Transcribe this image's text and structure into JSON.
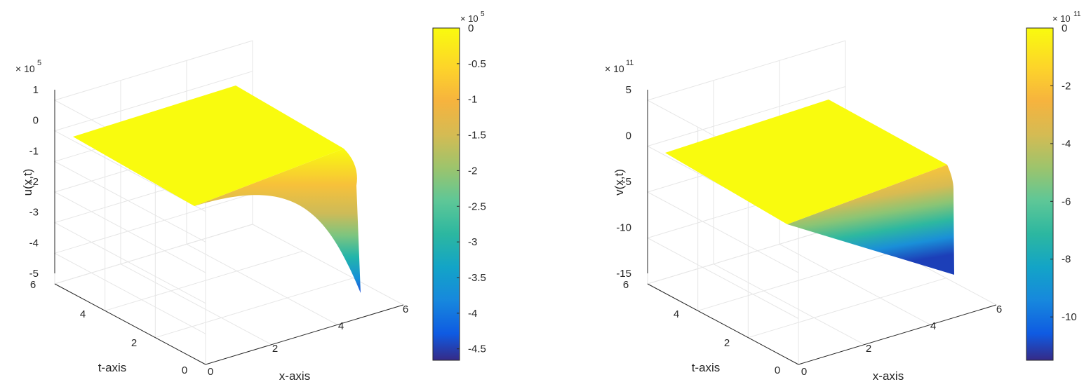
{
  "chart_data": [
    {
      "type": "surface",
      "xlabel": "x-axis",
      "ylabel": "t-axis",
      "zlabel": "u(x,t)",
      "x_ticks": [
        "0",
        "2",
        "4",
        "6"
      ],
      "t_ticks": [
        "0",
        "2",
        "4",
        "6"
      ],
      "z_ticks": [
        "1",
        "0",
        "-1",
        "-2",
        "-3",
        "-4",
        "-5"
      ],
      "z_exponent_base": "× 10",
      "z_exponent": "5",
      "xlim": [
        0,
        6
      ],
      "tlim": [
        0,
        6
      ],
      "zlim": [
        -500000,
        100000
      ],
      "surface_x_range": [
        0,
        5
      ],
      "surface_t_range": [
        0,
        5
      ],
      "surface_samples": {
        "description": "z along the far edge t = 5 where the surface drops",
        "x": [
          0,
          3.0,
          3.5,
          4.0,
          4.5,
          4.8,
          5.0
        ],
        "z_at_t5": [
          0,
          -1000,
          -10000,
          -40000,
          -120000,
          -280000,
          -466000
        ],
        "z_at_t0": [
          0,
          0,
          0,
          0,
          0,
          -500,
          -1200
        ]
      },
      "colorbar": {
        "ticks": [
          "0",
          "-0.5",
          "-1",
          "-1.5",
          "-2",
          "-2.5",
          "-3",
          "-3.5",
          "-4",
          "-4.5"
        ],
        "exponent_base": "× 10",
        "exponent": "5",
        "range": [
          -466000,
          0
        ],
        "colormap": "parula"
      },
      "grid": true
    },
    {
      "type": "surface",
      "xlabel": "x-axis",
      "ylabel": "t-axis",
      "zlabel": "v(x,t)",
      "x_ticks": [
        "0",
        "2",
        "4",
        "6"
      ],
      "t_ticks": [
        "0",
        "2",
        "4",
        "6"
      ],
      "z_ticks": [
        "5",
        "0",
        "-5",
        "-10",
        "-15"
      ],
      "z_exponent_base": "× 10",
      "z_exponent": "11",
      "xlim": [
        0,
        6
      ],
      "tlim": [
        0,
        6
      ],
      "zlim": [
        -1500000000000,
        500000000000
      ],
      "surface_x_range": [
        0,
        5
      ],
      "surface_t_range": [
        0,
        5
      ],
      "surface_samples": {
        "description": "z along the far x = 5 edge, linear in t",
        "t": [
          0,
          1,
          2,
          3,
          4,
          5
        ],
        "z_at_x5": [
          0,
          -230000000000,
          -460000000000,
          -690000000000,
          -920000000000,
          -1150000000000
        ]
      },
      "colorbar": {
        "ticks": [
          "0",
          "-2",
          "-4",
          "-6",
          "-8",
          "-10"
        ],
        "exponent_base": "× 10",
        "exponent": "11",
        "range": [
          -1150000000000,
          0
        ],
        "colormap": "parula"
      },
      "grid": true
    }
  ],
  "colors": {
    "parula_top": "#f9fb0e",
    "parula_mid": "#2cb7a0",
    "parula_bottom": "#352a87",
    "grid": "#e6e6e6",
    "axis": "#262626"
  }
}
